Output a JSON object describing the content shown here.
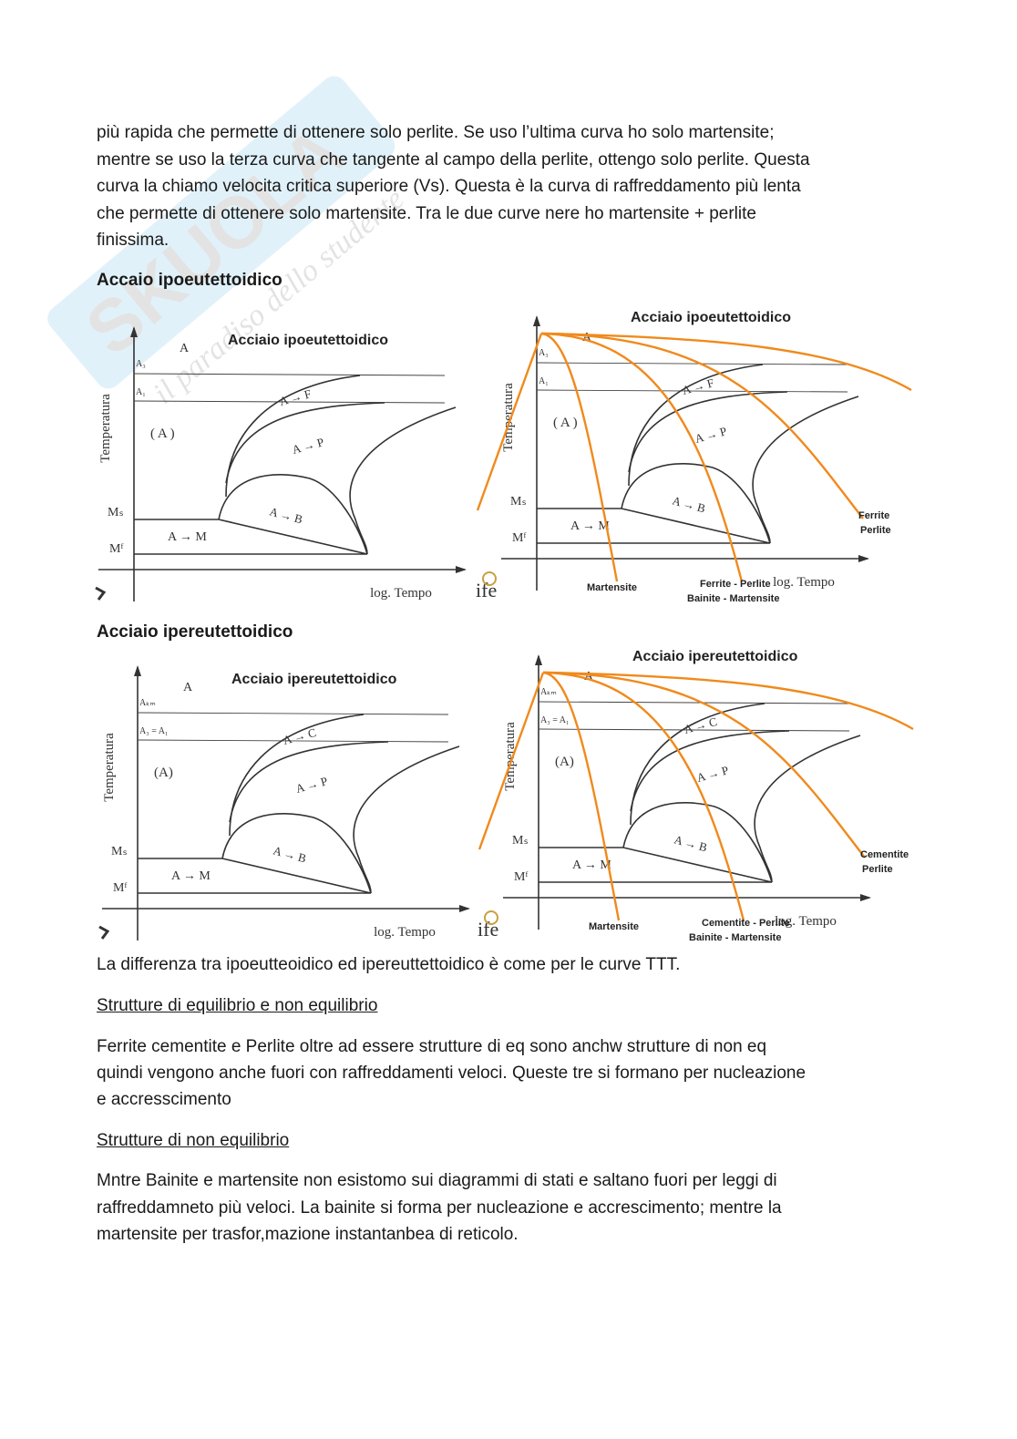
{
  "watermark": {
    "text": "SKUOLA.net",
    "tagline": "il paradiso dello studente",
    "color": "#1a9ad6"
  },
  "intro_lines": [
    "più rapida che permette di ottenere solo perlite. Se uso l’ultima curva ho solo martensite;",
    "mentre se uso la terza curva che tangente al campo della perlite, ottengo solo perlite. Questa",
    "curva la chiamo velocita critica superiore (Vs). Questa è la curva di raffreddamento più lenta",
    "che permette di ottenere solo martensite. Tra le due curve nere ho martensite + perlite",
    "finissima."
  ],
  "section1": {
    "heading": "Accaio ipoeutettoidico"
  },
  "section2": {
    "heading": "Acciaio ipereutettoidico"
  },
  "diagrams": {
    "hypo": {
      "title": "Acciaio ipoeutettoidico",
      "ylabel": "Temperatura",
      "xlabel": "log. Tempo",
      "A": "A",
      "upper": "A₃",
      "lower": "A₁",
      "region": "( A )",
      "ms": "Mₛ",
      "mf": "Mᶠ",
      "af": "A → F",
      "ap": "A → P",
      "ab": "A → B",
      "am": "A → M",
      "curve_labels": {
        "c1": "Martensite",
        "c2a": "Ferrite - Perlite",
        "c2b": "Bainite - Martensite",
        "c3a": "Ferrite",
        "c3b": "Perlite"
      }
    },
    "hyper": {
      "title": "Acciaio ipereutettoidico",
      "ylabel": "Temperatura",
      "xlabel": "log. Tempo",
      "A": "A",
      "upper": "Aₖₘ",
      "lower": "A₃ = A₁",
      "region": "(A)",
      "ms": "Mₛ",
      "mf": "Mᶠ",
      "af": "A → C",
      "ap": "A → P",
      "ab": "A → B",
      "am": "A → M",
      "curve_labels": {
        "c1": "Martensite",
        "c2a": "Cementite - Perlite",
        "c2b": "Bainite - Martensite",
        "c3a": "Cementite",
        "c3b": "Perlite"
      }
    },
    "logo": "ife",
    "cooling_color": "#f08a1c"
  },
  "after_diagrams": "La differenza tra ipoeutteoidico ed ipereuttettoidico è come per le curve TTT.",
  "sub1": {
    "title": "Strutture di equilibrio e non equilibrio",
    "lines": [
      "Ferrite cementite e Perlite oltre ad essere strutture di eq sono anchw strutture di non eq",
      "quindi vengono anche fuori con raffreddamenti veloci. Queste tre si formano per nucleazione",
      "e accresscimento"
    ]
  },
  "sub2": {
    "title": "Strutture di non equilibrio",
    "lines": [
      "Mntre Bainite e martensite non esistomo sui diagrammi di stati e saltano fuori per leggi di",
      "raffreddamneto più veloci. La bainite si forma per nucleazione e accrescimento; mentre la",
      "martensite per trasfor,mazione instantanbea di reticolo."
    ]
  }
}
